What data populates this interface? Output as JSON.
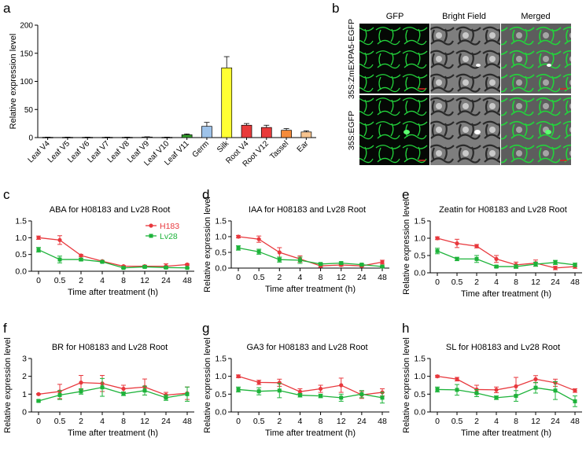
{
  "panel_letters": [
    "a",
    "b",
    "c",
    "d",
    "e",
    "f",
    "g",
    "h"
  ],
  "colors": {
    "h183": "#e8383d",
    "lv28": "#1db33a",
    "gfp": "#1fd13a",
    "cell_dark": "#0b0f0b",
    "bright_field": "#8a8a8a",
    "bars": [
      "#bfbfbf",
      "#bfbfbf",
      "#bfbfbf",
      "#bfbfbf",
      "#bfbfbf",
      "#bfbfbf",
      "#bfbfbf",
      "#33a02c",
      "#9ec3ea",
      "#ffff33",
      "#e83a3a",
      "#e83a3a",
      "#f58b3a",
      "#f7c48f"
    ]
  },
  "chart_data": [
    {
      "panel": "a",
      "type": "bar",
      "ylabel": "Relative expression level",
      "xlabel": "",
      "ylim": [
        0,
        200
      ],
      "yticks": [
        0,
        50,
        100,
        150,
        200
      ],
      "categories": [
        "Leaf V4",
        "Leaf V5",
        "Leaf V6",
        "Leaf V7",
        "Leaf V8",
        "Leaf V9",
        "Leaf V10",
        "Leaf V11",
        "Germ",
        "Silk",
        "Root V4",
        "Root V12",
        "Tassel",
        "Ear"
      ],
      "values": [
        0.5,
        0.5,
        0.5,
        0.5,
        0.5,
        1,
        0.5,
        5,
        20,
        124,
        22,
        18,
        13,
        10
      ],
      "errors": [
        0.3,
        0.3,
        0.3,
        0.3,
        0.3,
        0.4,
        0.3,
        1.5,
        7,
        20,
        3,
        4,
        3,
        2
      ]
    },
    {
      "panel": "c",
      "type": "line",
      "title": "ABA for H08183 and Lv28 Root",
      "xlabel": "Time after treatment (h)",
      "ylabel": "",
      "x": [
        "0",
        "0.5",
        "2",
        "4",
        "8",
        "12",
        "24",
        "48"
      ],
      "ylim": [
        0,
        1.5
      ],
      "yticks": [
        "0.0",
        "0.5",
        "1.0",
        "1.5"
      ],
      "legend": [
        "H183",
        "Lv28"
      ],
      "series": [
        {
          "name": "H183",
          "values": [
            1.0,
            0.93,
            0.47,
            0.3,
            0.15,
            0.15,
            0.15,
            0.2
          ],
          "errors": [
            0.05,
            0.13,
            0.03,
            0.02,
            0.02,
            0.03,
            0.07,
            0.02
          ]
        },
        {
          "name": "Lv28",
          "values": [
            0.64,
            0.35,
            0.35,
            0.28,
            0.1,
            0.13,
            0.11,
            0.1
          ],
          "errors": [
            0.07,
            0.1,
            0.04,
            0.02,
            0.02,
            0.03,
            0.02,
            0.01
          ]
        }
      ]
    },
    {
      "panel": "d",
      "type": "line",
      "title": "IAA for H08183 and Lv28 Root",
      "xlabel": "Time after treatment (h)",
      "ylabel": "Relative expression level",
      "x": [
        "0",
        "0.5",
        "2",
        "4",
        "8",
        "12",
        "24",
        "48"
      ],
      "ylim": [
        0,
        1.5
      ],
      "yticks": [
        "0.0",
        "0.5",
        "1.0",
        "1.5"
      ],
      "series": [
        {
          "name": "H183",
          "values": [
            1.0,
            0.92,
            0.5,
            0.29,
            0.07,
            0.1,
            0.07,
            0.19
          ],
          "errors": [
            0.04,
            0.1,
            0.15,
            0.1,
            0.04,
            0.04,
            0.03,
            0.06
          ]
        },
        {
          "name": "Lv28",
          "values": [
            0.64,
            0.52,
            0.27,
            0.25,
            0.13,
            0.16,
            0.11,
            0.05
          ],
          "errors": [
            0.07,
            0.08,
            0.08,
            0.1,
            0.04,
            0.04,
            0.03,
            0.02
          ]
        }
      ]
    },
    {
      "panel": "e",
      "type": "line",
      "title": "Zeatin for H08183 and Lv28 Root",
      "xlabel": "Time after treatment (h)",
      "ylabel": "Relative expression level",
      "x": [
        "0",
        "0.5",
        "2",
        "4",
        "8",
        "12",
        "24",
        "48"
      ],
      "ylim": [
        0,
        1.5
      ],
      "yticks": [
        "0.0",
        "0.5",
        "1.0",
        "1.5"
      ],
      "series": [
        {
          "name": "H183",
          "values": [
            1.0,
            0.85,
            0.77,
            0.4,
            0.23,
            0.28,
            0.14,
            0.18
          ],
          "errors": [
            0.04,
            0.12,
            0.05,
            0.1,
            0.08,
            0.09,
            0.05,
            0.05
          ]
        },
        {
          "name": "Lv28",
          "values": [
            0.63,
            0.4,
            0.4,
            0.18,
            0.18,
            0.25,
            0.3,
            0.23
          ],
          "errors": [
            0.08,
            0.05,
            0.1,
            0.03,
            0.05,
            0.06,
            0.06,
            0.05
          ]
        }
      ]
    },
    {
      "panel": "f",
      "type": "line",
      "title": "BR for H08183 and Lv28 Root",
      "xlabel": "Time after treatment (h)",
      "ylabel": "Relative expression level",
      "x": [
        "0",
        "0.5",
        "2",
        "4",
        "8",
        "12",
        "24",
        "48"
      ],
      "ylim": [
        0,
        3
      ],
      "yticks": [
        "0",
        "1",
        "2",
        "3"
      ],
      "series": [
        {
          "name": "H183",
          "values": [
            1.0,
            1.15,
            1.65,
            1.6,
            1.3,
            1.4,
            0.95,
            1.05
          ],
          "errors": [
            0.03,
            0.4,
            0.4,
            0.45,
            0.2,
            0.45,
            0.15,
            0.35
          ]
        },
        {
          "name": "Lv28",
          "values": [
            0.62,
            0.95,
            1.15,
            1.38,
            1.02,
            1.2,
            0.8,
            1.0
          ],
          "errors": [
            0.05,
            0.25,
            0.15,
            0.5,
            0.1,
            0.25,
            0.15,
            0.4
          ]
        }
      ]
    },
    {
      "panel": "g",
      "type": "line",
      "title": "GA3 for H08183 and Lv28 Root",
      "xlabel": "Time after treatment (h)",
      "ylabel": "Relative expression level",
      "x": [
        "0",
        "0.5",
        "2",
        "4",
        "8",
        "12",
        "24",
        "48"
      ],
      "ylim": [
        0,
        1.5
      ],
      "yticks": [
        "0.0",
        "0.5",
        "1.0",
        "1.5"
      ],
      "series": [
        {
          "name": "H183",
          "values": [
            1.0,
            0.83,
            0.82,
            0.57,
            0.65,
            0.75,
            0.48,
            0.55
          ],
          "errors": [
            0.04,
            0.06,
            0.1,
            0.08,
            0.1,
            0.2,
            0.1,
            0.1
          ]
        },
        {
          "name": "Lv28",
          "values": [
            0.63,
            0.58,
            0.6,
            0.47,
            0.45,
            0.4,
            0.5,
            0.4
          ],
          "errors": [
            0.07,
            0.1,
            0.2,
            0.05,
            0.05,
            0.1,
            0.1,
            0.15
          ]
        }
      ]
    },
    {
      "panel": "h",
      "type": "line",
      "title": "SL for H08183 and Lv28 Root",
      "xlabel": "Time after treatment (h)",
      "ylabel": "Relative expression level",
      "x": [
        "0",
        "0.5",
        "2",
        "4",
        "8",
        "12",
        "24",
        "48"
      ],
      "ylim": [
        0,
        1.5
      ],
      "yticks": [
        "0.0",
        "0.5",
        "1.0",
        "1.5"
      ],
      "series": [
        {
          "name": "H183",
          "values": [
            1.0,
            0.92,
            0.63,
            0.62,
            0.72,
            0.92,
            0.82,
            0.6
          ],
          "errors": [
            0.03,
            0.05,
            0.12,
            0.08,
            0.25,
            0.1,
            0.1,
            0.05
          ]
        },
        {
          "name": "Lv28",
          "values": [
            0.63,
            0.62,
            0.53,
            0.4,
            0.45,
            0.68,
            0.6,
            0.3
          ],
          "errors": [
            0.07,
            0.15,
            0.1,
            0.05,
            0.15,
            0.15,
            0.25,
            0.15
          ]
        }
      ]
    }
  ],
  "microscopy": {
    "columns": [
      "GFP",
      "Bright Field",
      "Merged"
    ],
    "rows": [
      "35S:ZmEXPA5-EGFP",
      "35S:EGFP"
    ]
  }
}
